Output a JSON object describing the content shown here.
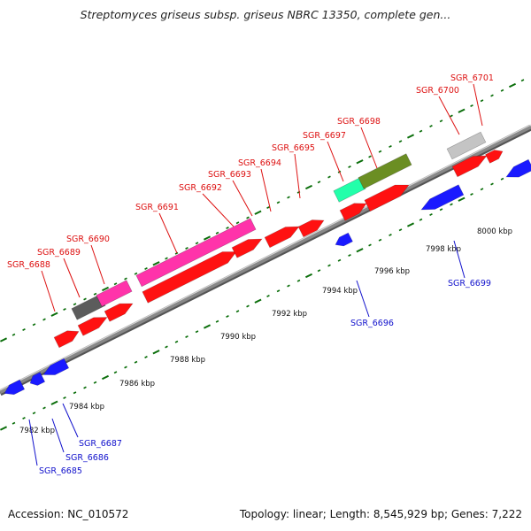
{
  "title": "Streptomyces griseus subsp. griseus NBRC 13350, complete gen...",
  "footer": {
    "accession": "Accession: NC_010572",
    "info": "Topology: linear; Length: 8,545,929 bp; Genes: 7,222"
  },
  "colors": {
    "forward_label": "#dd1111",
    "reverse_label": "#1111cc",
    "forward_gene": "#ff1111",
    "reverse_gene": "#1a1aff",
    "backbone": "#888888",
    "tick": "#0a6e0a"
  },
  "scale_labels": [
    "7982 kbp",
    "7984 kbp",
    "7986 kbp",
    "7988 kbp",
    "7990 kbp",
    "7992 kbp",
    "7994 kbp",
    "7996 kbp",
    "7998 kbp",
    "8000 kbp"
  ],
  "forward_genes": [
    "SGR_6688",
    "SGR_6689",
    "SGR_6690",
    "SGR_6691",
    "SGR_6692",
    "SGR_6693",
    "SGR_6694",
    "SGR_6695",
    "SGR_6697",
    "SGR_6698",
    "SGR_6700",
    "SGR_6701"
  ],
  "reverse_genes": [
    "SGR_6685",
    "SGR_6686",
    "SGR_6687",
    "SGR_6696",
    "SGR_6699"
  ]
}
